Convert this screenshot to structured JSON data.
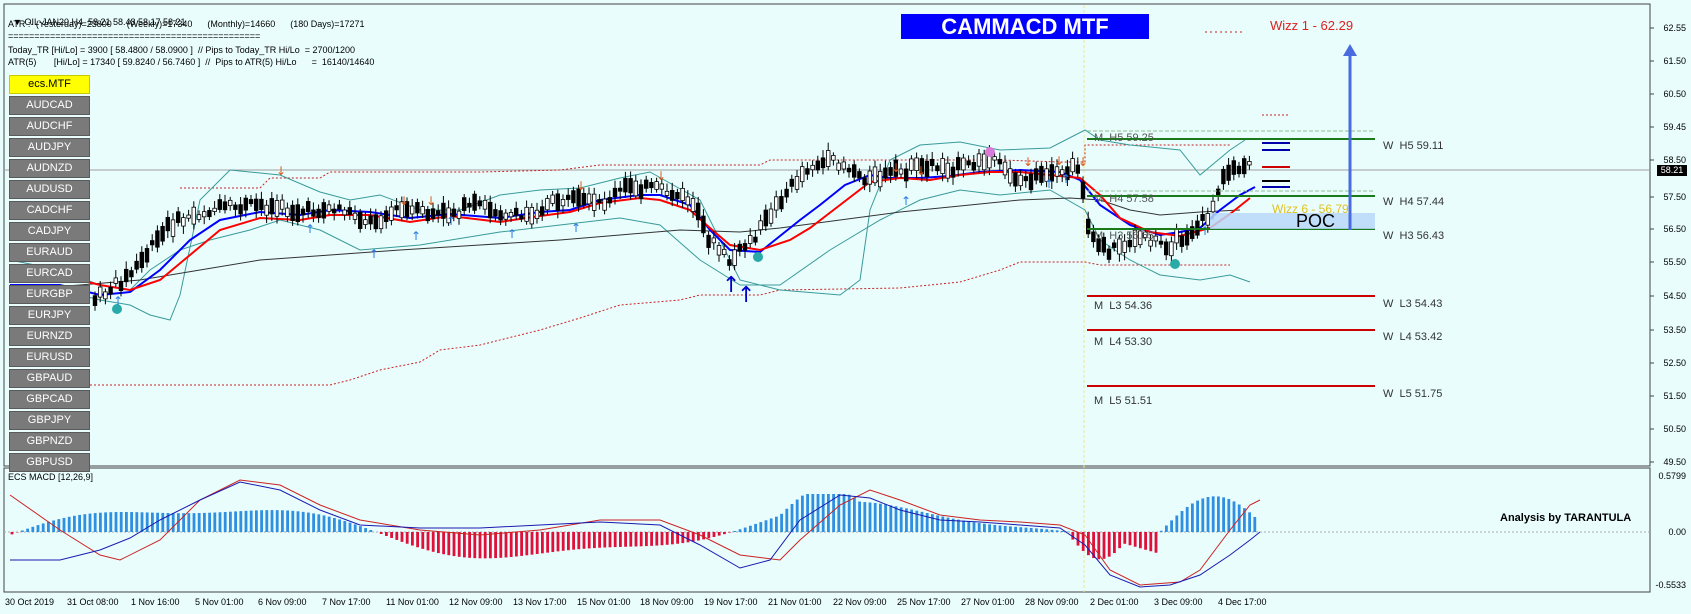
{
  "header": {
    "line1": "OIL-JAN20,H4  58.21 58.48 58.17 58.21",
    "line2": "ATR :- (Yesterday)=23800      (Weekly)=17340      (Monthly)=14660      (180 Days)=17271",
    "line3": "================================================",
    "line4": "Today_TR [Hi/Lo] = 3900 [ 58.4800 / 58.0900 ]  // Pips to Today_TR Hi/Lo  = 2700/1200",
    "line5": "ATR(5)       [Hi/Lo] = 17340 [ 59.8240 / 56.7460 ]  //  Pips to ATR(5) Hi/Lo      =  16140/14640"
  },
  "banner": "CAMMACD MTF",
  "symbols": {
    "active": "ecs.MTF",
    "list": [
      "AUDCAD",
      "AUDCHF",
      "AUDJPY",
      "AUDNZD",
      "AUDUSD",
      "CADCHF",
      "CADJPY",
      "EURAUD",
      "EURCAD",
      "EURGBP",
      "EURJPY",
      "EURNZD",
      "EURUSD",
      "GBPAUD",
      "GBPCAD",
      "GBPJPY",
      "GBPNZD",
      "GBPUSD"
    ]
  },
  "wizz": {
    "top": "Wizz 1 - 62.29",
    "mid": "Wizz 6 - 56.79"
  },
  "poc": "POC",
  "levels": {
    "m_h5": "M  H5 59.25",
    "m_h4": "M  H4 57.58",
    "m_h3": "M  H3 56.65",
    "m_l3": "M  L3 54.36",
    "m_l4": "M  L4 53.30",
    "m_l5": "M  L5 51.51",
    "w_h5": "W  H5 59.11",
    "w_h4": "W  H4 57.44",
    "w_h3": "W  H3 56.43",
    "w_l3": "W  L3 54.43",
    "w_l4": "W  L4 53.42",
    "w_l5": "W  L5 51.75"
  },
  "price_axis": [
    "62.55",
    "61.50",
    "60.50",
    "59.45",
    "58.50",
    "57.50",
    "56.50",
    "55.50",
    "54.50",
    "53.50",
    "52.50",
    "51.50",
    "50.50",
    "49.50"
  ],
  "current_price": "58.21",
  "macd": {
    "title": "ECS MACD [12,26,9]",
    "axis": [
      "0.5799",
      "0.00",
      "-0.5533"
    ],
    "credit": "Analysis by TARANTULA"
  },
  "time_axis": [
    "30 Oct 2019",
    "31 Oct 08:00",
    "1 Nov 16:00",
    "5 Nov 01:00",
    "6 Nov 09:00",
    "7 Nov 17:00",
    "11 Nov 01:00",
    "12 Nov 09:00",
    "13 Nov 17:00",
    "15 Nov 01:00",
    "18 Nov 09:00",
    "19 Nov 17:00",
    "21 Nov 01:00",
    "22 Nov 09:00",
    "25 Nov 17:00",
    "27 Nov 01:00",
    "28 Nov 09:00",
    "2 Dec 01:00",
    "3 Dec 09:00",
    "4 Dec 17:00"
  ],
  "colors": {
    "bg": "#e9fdfd",
    "bull": "#ffffff",
    "bear": "#000000",
    "ema_blue": "#0000ff",
    "ema_red": "#ff0000",
    "macd_pos": "#2f8fe0",
    "macd_neg": "#e0103a",
    "banner": "#0000ff",
    "active_symbol": "#ffff00"
  }
}
